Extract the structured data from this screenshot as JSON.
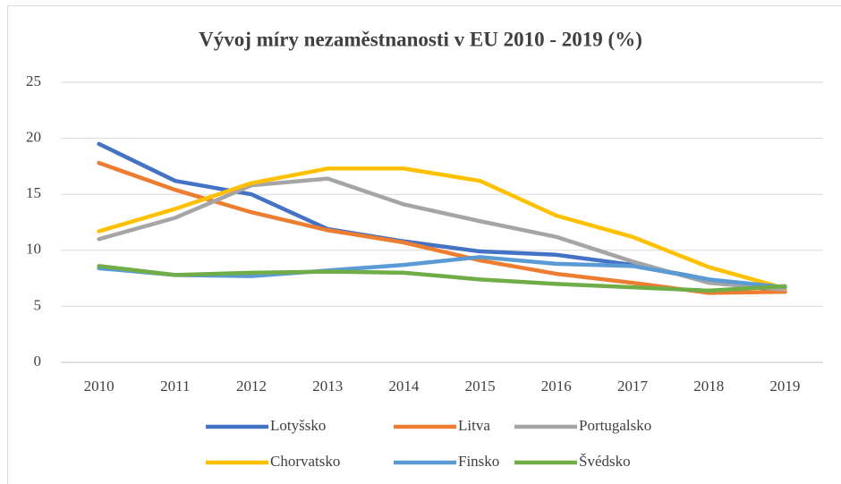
{
  "chart_data": {
    "type": "line",
    "title": "Vývoj míry nezaměstnanosti v EU 2010 - 2019 (%)",
    "categories": [
      "2010",
      "2011",
      "2012",
      "2013",
      "2014",
      "2015",
      "2016",
      "2017",
      "2018",
      "2019"
    ],
    "series": [
      {
        "name": "Lotyšsko",
        "color": "#4472c4",
        "values": [
          19.5,
          16.2,
          15.0,
          11.9,
          10.8,
          9.9,
          9.6,
          8.7,
          7.4,
          6.3
        ]
      },
      {
        "name": "Litva",
        "color": "#ed7d31",
        "values": [
          17.8,
          15.4,
          13.4,
          11.8,
          10.7,
          9.1,
          7.9,
          7.1,
          6.2,
          6.3
        ]
      },
      {
        "name": "Portugalsko",
        "color": "#a5a5a5",
        "values": [
          11.0,
          12.9,
          15.8,
          16.4,
          14.1,
          12.6,
          11.2,
          9.0,
          7.1,
          6.5
        ]
      },
      {
        "name": "Chorvatsko",
        "color": "#ffc000",
        "values": [
          11.7,
          13.7,
          16.0,
          17.3,
          17.3,
          16.2,
          13.1,
          11.2,
          8.5,
          6.6
        ]
      },
      {
        "name": "Finsko",
        "color": "#5b9bd5",
        "values": [
          8.4,
          7.8,
          7.7,
          8.2,
          8.7,
          9.4,
          8.8,
          8.6,
          7.4,
          6.7
        ]
      },
      {
        "name": "Švédsko",
        "color": "#70ad47",
        "values": [
          8.6,
          7.8,
          8.0,
          8.1,
          8.0,
          7.4,
          7.0,
          6.7,
          6.4,
          6.8
        ]
      }
    ],
    "ylim": [
      0,
      25
    ],
    "yticks": [
      0,
      5,
      10,
      15,
      20,
      25
    ],
    "grid": true,
    "legend": "bottom"
  }
}
